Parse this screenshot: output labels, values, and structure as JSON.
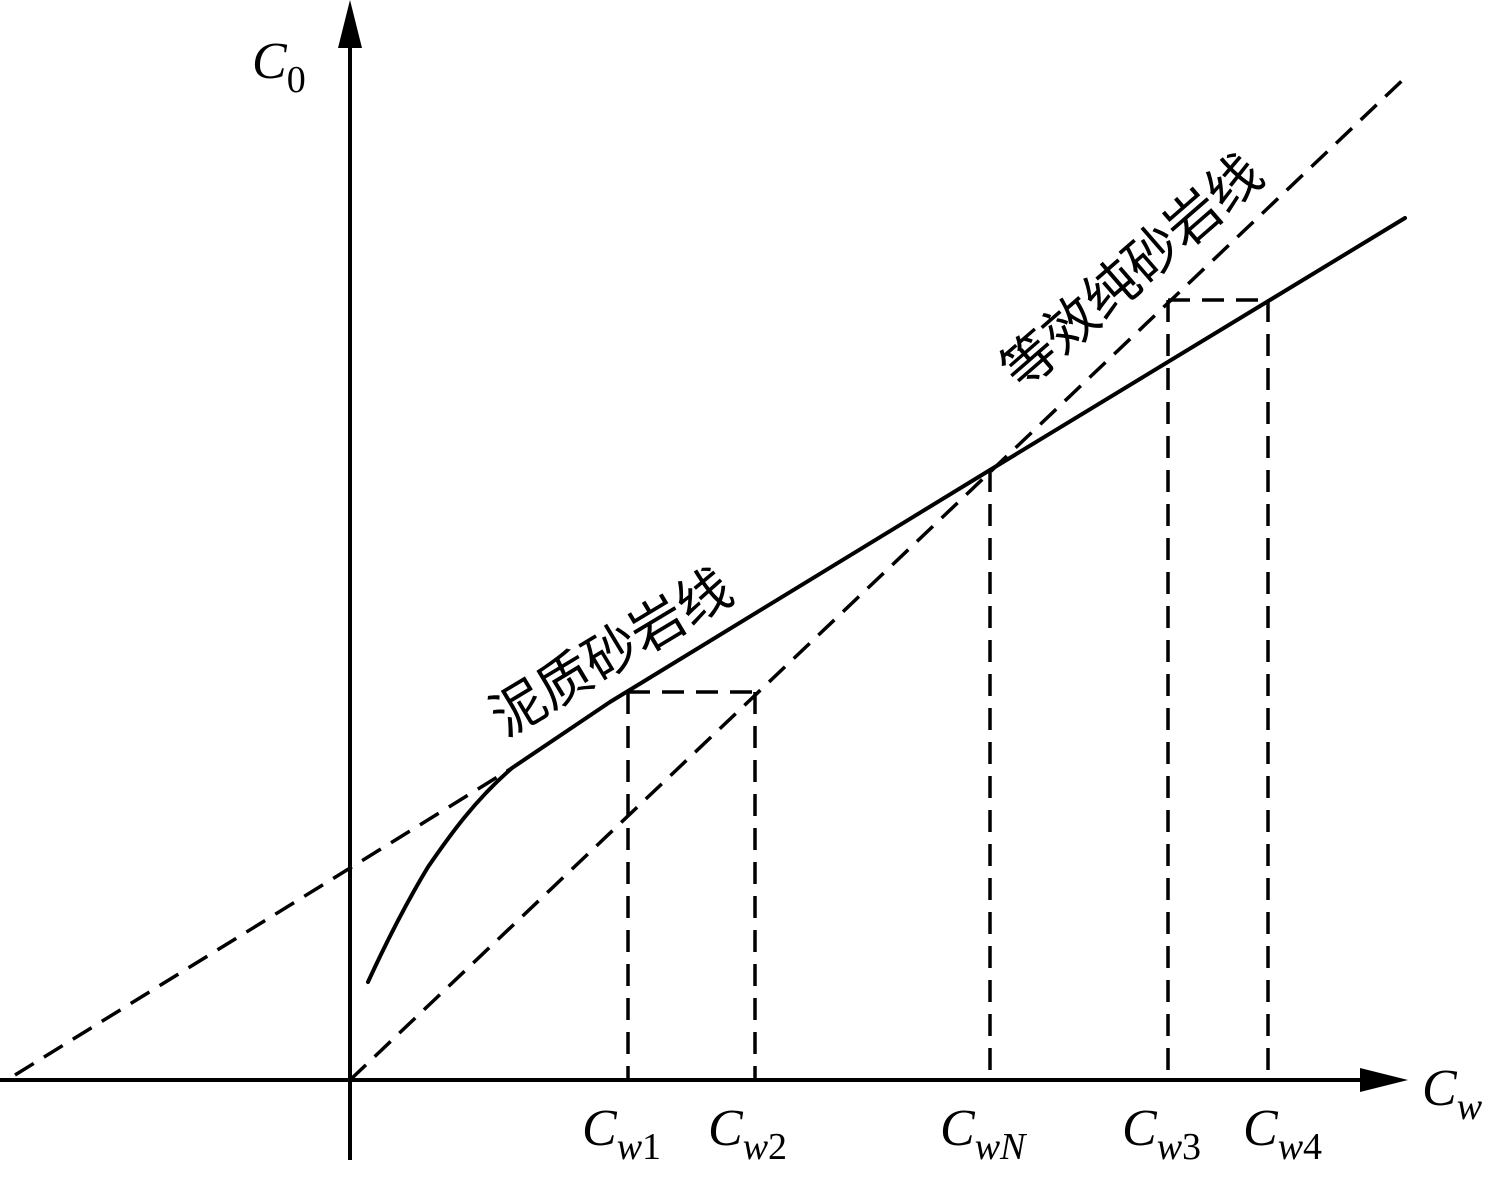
{
  "axes": {
    "y_label_main": "C",
    "y_label_sub": "0",
    "x_label_main": "C",
    "x_label_sub": "w"
  },
  "ticks": [
    {
      "main": "C",
      "sub": "w",
      "idx": "1"
    },
    {
      "main": "C",
      "sub": "w",
      "idx": "2"
    },
    {
      "main": "C",
      "sub": "wN",
      "idx": ""
    },
    {
      "main": "C",
      "sub": "w",
      "idx": "3"
    },
    {
      "main": "C",
      "sub": "w",
      "idx": "4"
    }
  ],
  "annotations": {
    "shaly_sand_line": "泥质砂岩线",
    "equivalent_clean_sand_line": "等效纯砂岩线"
  }
}
